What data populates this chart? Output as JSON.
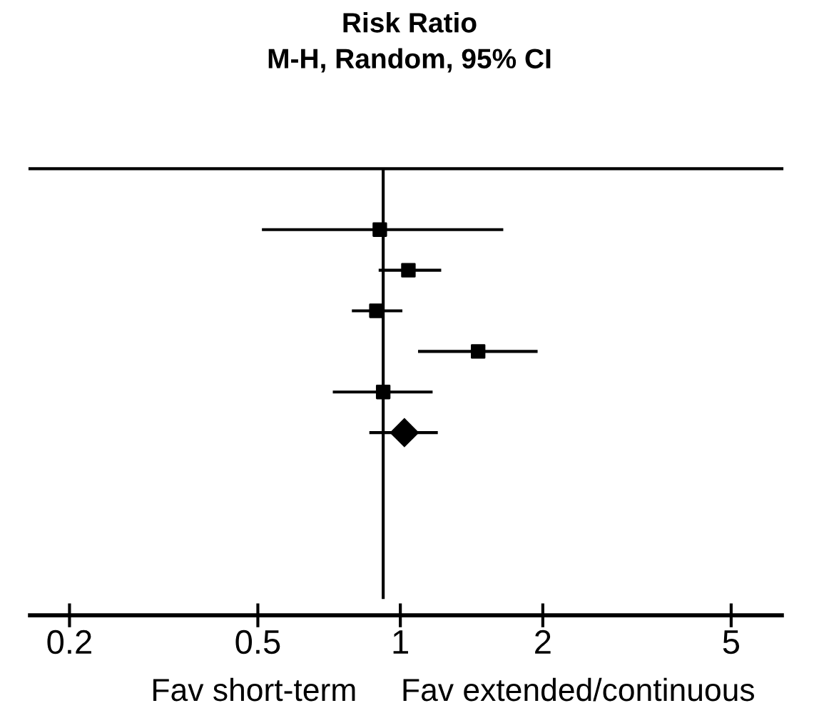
{
  "chart_data": {
    "type": "scatter",
    "title": "Risk Ratio",
    "subtitle": "M-H, Random, 95% CI",
    "orientation": "horizontal",
    "log": "x",
    "categories": [
      null,
      null,
      null,
      null,
      null,
      null,
      null,
      null,
      null,
      null,
      null
    ],
    "series": [
      {
        "color": "#000000",
        "marker": "square",
        "values": [
          null,
          0.905,
          1.04,
          0.89,
          1.46,
          0.92,
          null,
          null,
          null,
          null,
          null
        ],
        "errors": [
          null,
          [
            0.51,
            1.65
          ],
          [
            0.9,
            1.22
          ],
          [
            0.79,
            1.01
          ],
          [
            1.09,
            1.95
          ],
          [
            0.72,
            1.17
          ],
          null,
          null,
          null,
          null,
          null
        ]
      },
      {
        "color": "#000000",
        "marker": "diamond",
        "values": [
          null,
          null,
          null,
          null,
          null,
          null,
          1.02,
          null,
          null,
          null,
          null
        ],
        "errors": [
          null,
          null,
          null,
          null,
          null,
          null,
          [
            0.86,
            1.2
          ],
          null,
          null,
          null,
          null
        ]
      }
    ],
    "xlim": [
      0.165,
      6.4
    ],
    "xticks": [
      0.2,
      0.5,
      1,
      2,
      5
    ],
    "ref_lines": [
      {
        "axis": "x",
        "value": 0.92,
        "color": "#000000"
      }
    ],
    "annotations": [
      "Fav short-term",
      "Fav extended/continuous"
    ],
    "tick_labels": "x",
    "grid": false,
    "legend": false
  }
}
